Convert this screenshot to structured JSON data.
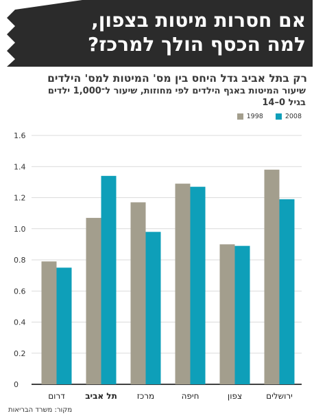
{
  "header": {
    "title_line1": "אם חסרות מיטות בצפון,",
    "title_line2": "למה הכסף הולך למרכז?"
  },
  "subtitle": "רק בתל אביב גדל היחס בין מס' המיטות למס' הילדים",
  "description_line1": "שיעור המיטות באגף הילדים לפי מחוזות, שיעור ל־1,000 ילדים",
  "description_line2": "בגיל 0–14",
  "source": "מקור: משרד הבריאות",
  "chart_data": {
    "type": "bar",
    "categories": [
      "דרום",
      "תל אביב",
      "מרכז",
      "חיפה",
      "צפון",
      "ירושלים"
    ],
    "highlight_category": "תל אביב",
    "series": [
      {
        "name": "1998",
        "color": "#a39e8d",
        "values": [
          0.79,
          1.07,
          1.17,
          1.29,
          0.9,
          1.38
        ]
      },
      {
        "name": "2008",
        "color": "#0e9fb9",
        "values": [
          0.75,
          1.34,
          0.98,
          1.27,
          0.89,
          1.19
        ]
      }
    ],
    "ylim": [
      0,
      1.6
    ],
    "yticks": [
      "0",
      "0.2",
      "0.4",
      "0.6",
      "0.8",
      "1.0",
      "1.2",
      "1.4",
      "1.6"
    ],
    "grid": true,
    "legend_position": "top-right"
  }
}
